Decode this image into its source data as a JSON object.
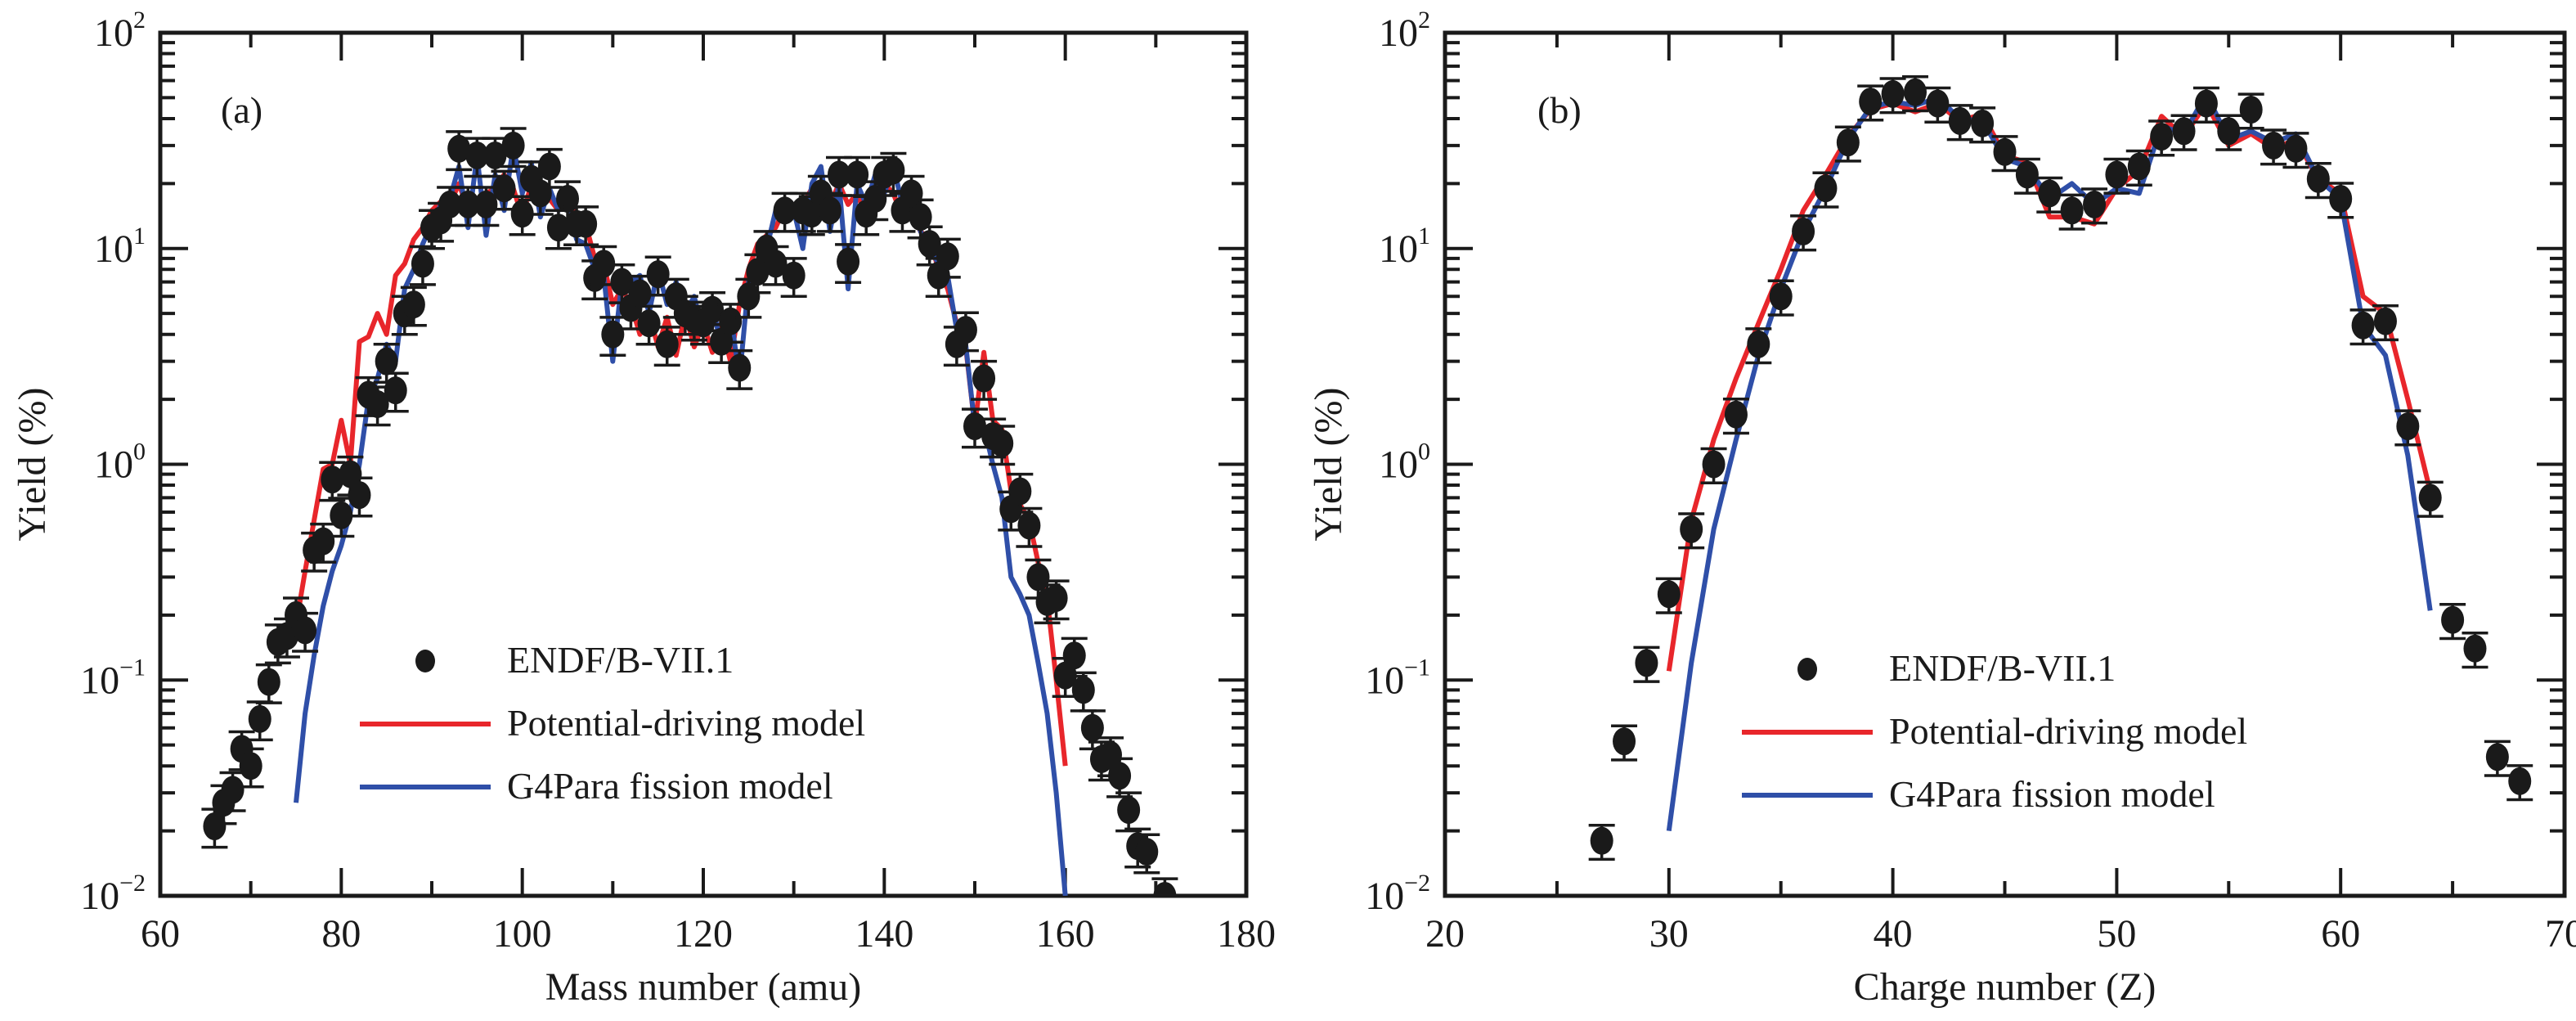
{
  "chart_data": [
    {
      "type": "scatter",
      "panel_label": "(a)",
      "title": "",
      "xlabel": "Mass number (amu)",
      "ylabel": "Yield (%)",
      "xlim": [
        60,
        180
      ],
      "ylim": [
        0.01,
        100
      ],
      "yscale": "log",
      "xticks": [
        60,
        80,
        100,
        120,
        140,
        160,
        180
      ],
      "xtick_labels": [
        "60",
        "80",
        "100",
        "120",
        "140",
        "160",
        "180"
      ],
      "yticks": [
        0.01,
        0.1,
        1,
        10,
        100
      ],
      "ytick_labels": [
        {
          "base": "10",
          "exp": "−2"
        },
        {
          "base": "10",
          "exp": "−1"
        },
        {
          "base": "10",
          "exp": "0"
        },
        {
          "base": "10",
          "exp": "1"
        },
        {
          "base": "10",
          "exp": "2"
        }
      ],
      "grid": false,
      "legend_position": "bottom-center",
      "legend": [
        {
          "label": "ENDF/B-VII.1",
          "kind": "marker",
          "color": "#1a1a1a"
        },
        {
          "label": "Potential-driving model",
          "kind": "line",
          "color": "#e8262b"
        },
        {
          "label": "G4Para fission model",
          "kind": "line",
          "color": "#2f4fa8"
        }
      ],
      "series": [
        {
          "name": "ENDF/B-VII.1",
          "style": "points-with-errorbars",
          "color": "#1a1a1a",
          "x": [
            66,
            67,
            68,
            69,
            70,
            71,
            72,
            73,
            74,
            75,
            76,
            77,
            78,
            79,
            80,
            81,
            82,
            83,
            84,
            85,
            86,
            87,
            88,
            89,
            90,
            91,
            92,
            93,
            94,
            95,
            96,
            97,
            98,
            99,
            100,
            101,
            102,
            103,
            104,
            105,
            106,
            107,
            108,
            109,
            110,
            111,
            112,
            113,
            114,
            115,
            116,
            117,
            118,
            119,
            120,
            121,
            122,
            123,
            124,
            125,
            126,
            127,
            128,
            129,
            130,
            131,
            132,
            133,
            134,
            135,
            136,
            137,
            138,
            139,
            140,
            141,
            142,
            143,
            144,
            145,
            146,
            147,
            148,
            149,
            150,
            151,
            152,
            153,
            154,
            155,
            156,
            157,
            158,
            159,
            160,
            161,
            162,
            163,
            164,
            165,
            166,
            167,
            168,
            169,
            171
          ],
          "y": [
            0.021,
            0.027,
            0.031,
            0.048,
            0.04,
            0.066,
            0.098,
            0.15,
            0.16,
            0.2,
            0.17,
            0.4,
            0.44,
            0.85,
            0.58,
            0.9,
            0.72,
            2.1,
            1.9,
            3.0,
            2.2,
            5.0,
            5.5,
            8.5,
            12.5,
            13.5,
            16,
            29,
            16,
            27,
            16,
            27,
            19,
            30,
            14.5,
            21,
            18,
            24,
            12.5,
            17,
            13,
            13,
            7.3,
            8.5,
            4.0,
            7.0,
            5.3,
            6.2,
            4.5,
            7.6,
            3.6,
            6.0,
            5.0,
            4.7,
            4.5,
            5.2,
            3.7,
            4.6,
            2.8,
            6.0,
            7.8,
            10,
            8.5,
            15,
            7.5,
            15,
            14.5,
            18,
            15,
            22,
            8.7,
            22,
            14.5,
            17,
            22,
            23,
            15,
            18,
            14,
            10.5,
            7.5,
            9.2,
            3.6,
            4.2,
            1.5,
            2.5,
            1.35,
            1.25,
            0.62,
            0.75,
            0.52,
            0.3,
            0.23,
            0.24,
            0.105,
            0.13,
            0.09,
            0.06,
            0.043,
            0.045,
            0.036,
            0.025,
            0.017,
            0.016,
            0.01
          ],
          "rel_error": 0.2
        },
        {
          "name": "Potential-driving model",
          "style": "line",
          "color": "#e8262b",
          "x": [
            75,
            76,
            77,
            78,
            79,
            80,
            81,
            82,
            83,
            84,
            85,
            86,
            87,
            88,
            89,
            90,
            91,
            92,
            93,
            94,
            95,
            96,
            97,
            98,
            99,
            100,
            101,
            102,
            103,
            104,
            105,
            106,
            107,
            108,
            109,
            110,
            111,
            112,
            113,
            114,
            115,
            116,
            117,
            118,
            119,
            120,
            121,
            122,
            123,
            124,
            125,
            126,
            127,
            128,
            129,
            130,
            131,
            132,
            133,
            134,
            135,
            136,
            137,
            138,
            139,
            140,
            141,
            142,
            143,
            144,
            145,
            146,
            147,
            148,
            149,
            150,
            151,
            152,
            153,
            154,
            155,
            156,
            157,
            158,
            159,
            160
          ],
          "y": [
            0.18,
            0.32,
            0.55,
            0.95,
            1.0,
            1.6,
            1.0,
            3.7,
            3.9,
            5.0,
            4.0,
            7.5,
            8.5,
            11,
            12.5,
            15,
            16.5,
            16,
            20,
            15,
            17,
            18,
            19,
            22,
            19,
            14,
            20,
            16,
            17,
            15,
            19,
            13,
            13,
            9,
            8.5,
            5.5,
            6.5,
            5.5,
            4.0,
            5.0,
            3.5,
            4.8,
            3.2,
            5.0,
            3.5,
            4.5,
            3.3,
            4.5,
            3.0,
            5.5,
            8,
            10.5,
            11.5,
            12.5,
            15.5,
            14,
            16,
            19,
            17,
            16,
            20,
            16,
            18,
            14,
            16,
            20,
            18,
            14,
            15,
            12,
            11,
            8,
            6.5,
            4.5,
            3.5,
            1.5,
            3.3,
            1.6,
            1.45,
            0.75,
            0.65,
            0.55,
            0.35,
            0.24,
            0.1,
            0.04
          ]
        },
        {
          "name": "G4Para fission model",
          "style": "line",
          "color": "#2f4fa8",
          "x": [
            75,
            76,
            77,
            78,
            79,
            80,
            81,
            82,
            83,
            84,
            85,
            86,
            87,
            88,
            89,
            90,
            91,
            92,
            93,
            94,
            95,
            96,
            97,
            98,
            99,
            100,
            101,
            102,
            103,
            104,
            105,
            106,
            107,
            108,
            109,
            110,
            111,
            112,
            113,
            114,
            115,
            116,
            117,
            118,
            119,
            120,
            121,
            122,
            123,
            124,
            125,
            126,
            127,
            128,
            129,
            130,
            131,
            132,
            133,
            134,
            135,
            136,
            137,
            138,
            139,
            140,
            141,
            142,
            143,
            144,
            145,
            146,
            147,
            148,
            149,
            150,
            151,
            152,
            153,
            154,
            155,
            156,
            157,
            158,
            159,
            160
          ],
          "y": [
            0.027,
            0.07,
            0.13,
            0.22,
            0.32,
            0.42,
            0.6,
            1.0,
            2.0,
            2.5,
            3.6,
            3.0,
            6.5,
            8.0,
            10.5,
            13,
            16,
            17,
            24,
            12.5,
            27,
            11.5,
            22,
            15,
            30,
            18,
            25,
            14,
            19,
            15,
            16,
            11,
            10.5,
            8,
            7.5,
            3.0,
            7.0,
            7.0,
            7.5,
            5.0,
            8.0,
            5.5,
            7.0,
            5.0,
            6.0,
            4.0,
            5.5,
            3.5,
            5.0,
            2.5,
            7.0,
            8.5,
            10,
            15,
            17,
            15,
            10,
            20,
            24,
            12,
            20,
            6.5,
            20,
            16,
            22,
            18,
            24,
            16,
            17,
            12,
            10,
            8.5,
            7.5,
            4.2,
            3.6,
            1.5,
            1.5,
            1.0,
            0.7,
            0.3,
            0.25,
            0.2,
            0.12,
            0.07,
            0.03,
            0.01
          ]
        }
      ]
    },
    {
      "type": "scatter",
      "panel_label": "(b)",
      "title": "",
      "xlabel": "Charge number (Z)",
      "ylabel": "Yield (%)",
      "xlim": [
        20,
        70
      ],
      "ylim": [
        0.01,
        100
      ],
      "yscale": "log",
      "xticks": [
        20,
        30,
        40,
        50,
        60,
        70
      ],
      "xtick_labels": [
        "20",
        "30",
        "40",
        "50",
        "60",
        "70"
      ],
      "yticks": [
        0.01,
        0.1,
        1,
        10,
        100
      ],
      "ytick_labels": [
        {
          "base": "10",
          "exp": "−2"
        },
        {
          "base": "10",
          "exp": "−1"
        },
        {
          "base": "10",
          "exp": "0"
        },
        {
          "base": "10",
          "exp": "1"
        },
        {
          "base": "10",
          "exp": "2"
        }
      ],
      "grid": false,
      "legend_position": "bottom-center",
      "legend": [
        {
          "label": "ENDF/B-VII.1",
          "kind": "marker",
          "color": "#1a1a1a"
        },
        {
          "label": "Potential-driving model",
          "kind": "line",
          "color": "#e8262b"
        },
        {
          "label": "G4Para fission model",
          "kind": "line",
          "color": "#2f4fa8"
        }
      ],
      "series": [
        {
          "name": "ENDF/B-VII.1",
          "style": "points-with-errorbars",
          "color": "#1a1a1a",
          "x": [
            27,
            28,
            29,
            30,
            31,
            32,
            33,
            34,
            35,
            36,
            37,
            38,
            39,
            40,
            41,
            42,
            43,
            44,
            45,
            46,
            47,
            48,
            49,
            50,
            51,
            52,
            53,
            54,
            55,
            56,
            57,
            58,
            59,
            60,
            61,
            62,
            63,
            64,
            65,
            66,
            67,
            68
          ],
          "y": [
            0.018,
            0.052,
            0.12,
            0.25,
            0.5,
            1.0,
            1.7,
            3.6,
            6.0,
            12,
            19,
            31,
            48,
            52,
            53,
            47,
            39,
            38,
            28,
            22,
            18,
            15,
            16,
            22,
            24,
            33,
            35,
            47,
            35,
            44,
            30,
            29,
            21,
            17,
            4.4,
            4.6,
            1.5,
            0.7,
            0.19,
            0.14,
            0.044,
            0.034
          ],
          "rel_error": 0.18
        },
        {
          "name": "Potential-driving model",
          "style": "line",
          "color": "#e8262b",
          "x": [
            30,
            31,
            32,
            33,
            34,
            35,
            36,
            37,
            38,
            39,
            40,
            41,
            42,
            43,
            44,
            45,
            46,
            47,
            48,
            49,
            50,
            51,
            52,
            53,
            54,
            55,
            56,
            57,
            58,
            59,
            60,
            61,
            62,
            63,
            64
          ],
          "y": [
            0.11,
            0.55,
            1.3,
            2.5,
            4.5,
            8,
            15,
            22,
            33,
            44,
            47,
            43,
            47,
            39,
            42,
            27,
            25,
            14,
            14,
            13,
            19,
            23,
            41,
            33,
            47,
            30,
            34,
            29,
            32,
            21,
            18,
            6,
            5,
            2,
            0.75
          ]
        },
        {
          "name": "G4Para fission model",
          "style": "line",
          "color": "#2f4fa8",
          "x": [
            30,
            31,
            32,
            33,
            34,
            35,
            36,
            37,
            38,
            39,
            40,
            41,
            42,
            43,
            44,
            45,
            46,
            47,
            48,
            49,
            50,
            51,
            52,
            53,
            54,
            55,
            56,
            57,
            58,
            59,
            60,
            61,
            62,
            63,
            64
          ],
          "y": [
            0.02,
            0.12,
            0.5,
            1.3,
            3.2,
            6.5,
            12,
            19,
            32,
            45,
            48,
            46,
            50,
            40,
            39,
            26,
            24,
            17,
            20,
            16,
            19,
            18,
            37,
            34,
            52,
            32,
            35,
            31,
            34,
            21,
            17,
            4.4,
            3.2,
            1.1,
            0.21
          ]
        }
      ]
    }
  ]
}
